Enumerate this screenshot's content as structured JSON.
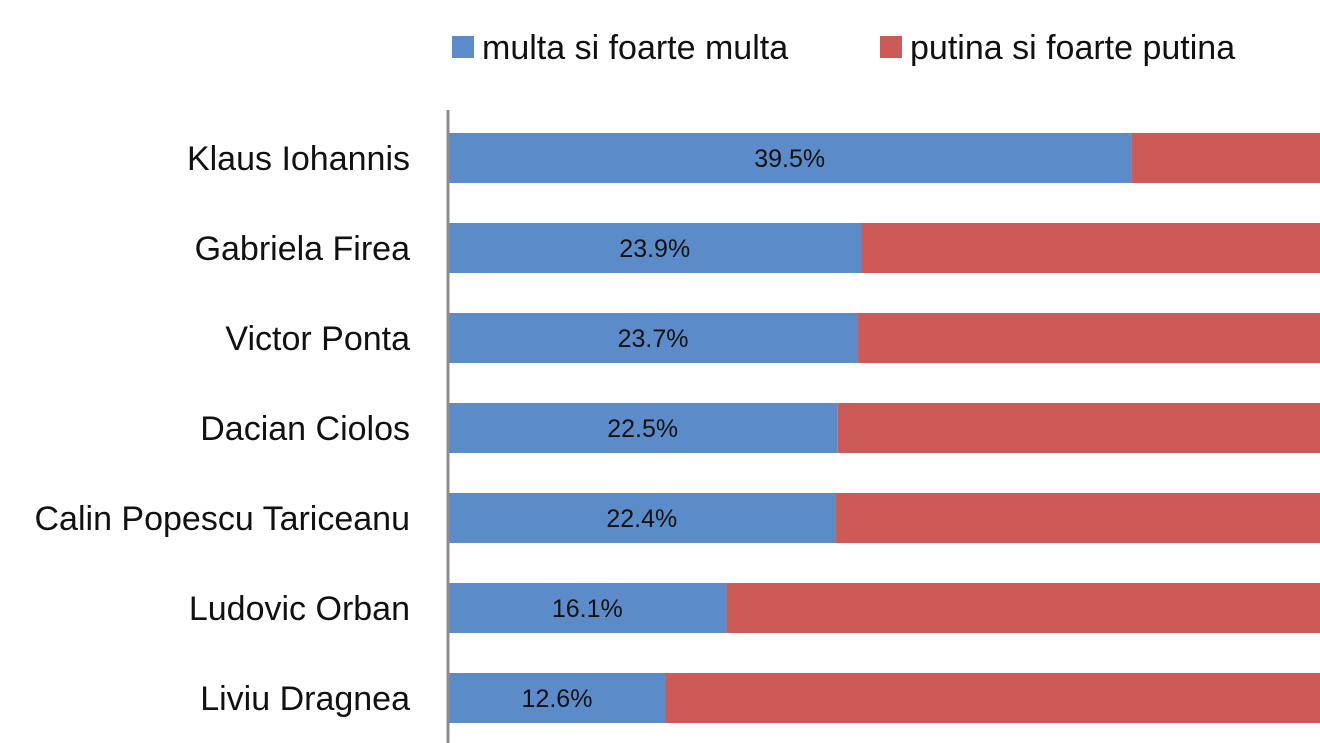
{
  "chart_data": {
    "type": "bar",
    "orientation": "horizontal",
    "stacked": true,
    "categories": [
      "Klaus Iohannis",
      "Gabriela Firea",
      "Victor Ponta",
      "Dacian Ciolos",
      "Calin Popescu Tariceanu",
      "Ludovic Orban",
      "Liviu Dragnea"
    ],
    "series": [
      {
        "name": "multa si foarte multa",
        "color": "#5b8cc9",
        "values": [
          39.5,
          23.9,
          23.7,
          22.5,
          22.4,
          16.1,
          12.6
        ],
        "data_labels": [
          "39.5%",
          "23.9%",
          "23.7%",
          "22.5%",
          "22.4%",
          "16.1%",
          "12.6%"
        ]
      },
      {
        "name": "putina si foarte putina",
        "color": "#cc5b58",
        "values": [
          null,
          null,
          null,
          null,
          null,
          null,
          null
        ]
      }
    ],
    "xlim": [
      0,
      50.4
    ],
    "legend_position": "top",
    "grid": false,
    "title": "",
    "xlabel": "",
    "ylabel": ""
  }
}
